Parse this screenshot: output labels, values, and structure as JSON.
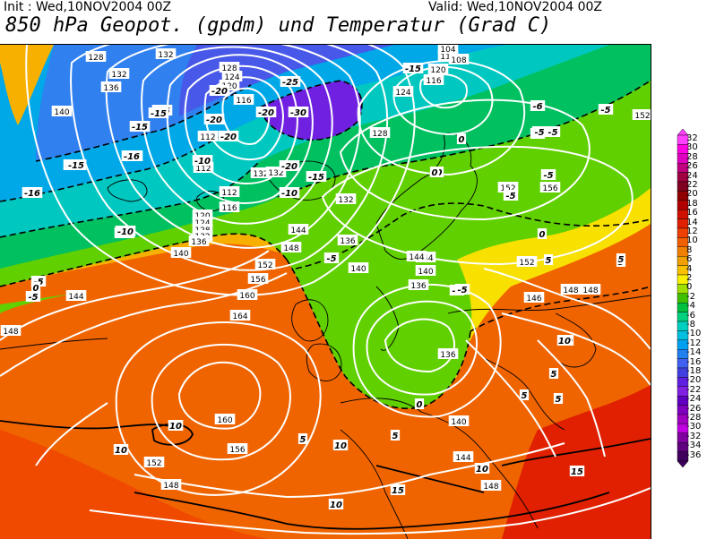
{
  "header": {
    "init_text": "Init : Wed,10NOV2004 00Z",
    "valid_text": "Valid: Wed,10NOV2004 00Z",
    "title": "850 hPa Geopot. (gpdm) und Temperatur (Grad C)"
  },
  "colorbar": {
    "labels": [
      "32",
      "30",
      "28",
      "26",
      "24",
      "22",
      "20",
      "18",
      "16",
      "14",
      "12",
      "10",
      "8",
      "6",
      "4",
      "2",
      "0",
      "-2",
      "-4",
      "-6",
      "-8",
      "-10",
      "-12",
      "-14",
      "-16",
      "-18",
      "-20",
      "-22",
      "-24",
      "-26",
      "-28",
      "-30",
      "-32",
      "-34",
      "-36"
    ],
    "colors": [
      "#ff40ff",
      "#ff00e0",
      "#e000c0",
      "#c00080",
      "#a00040",
      "#800020",
      "#900000",
      "#b00000",
      "#d01000",
      "#e02000",
      "#f04000",
      "#f06000",
      "#f08000",
      "#f0a000",
      "#f8c000",
      "#f8f000",
      "#a0e000",
      "#40c000",
      "#00c040",
      "#00d080",
      "#00d0c0",
      "#00c0e0",
      "#00a0f0",
      "#2080f0",
      "#4060f0",
      "#4040e0",
      "#6020e0",
      "#8020e0",
      "#6000c0",
      "#8000c0",
      "#a000c0",
      "#c000e0",
      "#8000a0",
      "#600080",
      "#400060"
    ]
  },
  "geopotential_labels": [
    {
      "text": "128"
    },
    {
      "text": "132"
    },
    {
      "text": "136"
    },
    {
      "text": "140"
    },
    {
      "text": "132"
    },
    {
      "text": "128"
    },
    {
      "text": "124"
    },
    {
      "text": "120"
    },
    {
      "text": "116"
    },
    {
      "text": "112"
    },
    {
      "text": "112"
    },
    {
      "text": "112"
    },
    {
      "text": "116"
    },
    {
      "text": "120"
    },
    {
      "text": "124"
    },
    {
      "text": "128"
    },
    {
      "text": "132"
    },
    {
      "text": "136"
    },
    {
      "text": "140"
    },
    {
      "text": "144"
    },
    {
      "text": "148"
    },
    {
      "text": "152"
    },
    {
      "text": "156"
    },
    {
      "text": "160"
    },
    {
      "text": "164"
    },
    {
      "text": "160"
    },
    {
      "text": "156"
    },
    {
      "text": "152"
    },
    {
      "text": "148"
    },
    {
      "text": "148"
    },
    {
      "text": "144"
    },
    {
      "text": "144"
    },
    {
      "text": "140"
    },
    {
      "text": "136"
    },
    {
      "text": "132"
    },
    {
      "text": "128"
    },
    {
      "text": "124"
    },
    {
      "text": "120"
    },
    {
      "text": "116"
    },
    {
      "text": "112"
    },
    {
      "text": "108"
    },
    {
      "text": "104"
    },
    {
      "text": "140"
    },
    {
      "text": "136"
    },
    {
      "text": "136"
    },
    {
      "text": "140"
    },
    {
      "text": "144"
    },
    {
      "text": "148"
    },
    {
      "text": "152"
    },
    {
      "text": "152"
    },
    {
      "text": "156"
    },
    {
      "text": "148"
    },
    {
      "text": "146"
    },
    {
      "text": "152"
    },
    {
      "text": "132"
    },
    {
      "text": "132"
    },
    {
      "text": "144"
    },
    {
      "text": "148"
    }
  ],
  "temperature_labels": [
    {
      "text": "-15"
    },
    {
      "text": "-15"
    },
    {
      "text": "-16"
    },
    {
      "text": "-15"
    },
    {
      "text": "-16"
    },
    {
      "text": "-15"
    },
    {
      "text": "-10"
    },
    {
      "text": "-10"
    },
    {
      "text": "-16"
    },
    {
      "text": "-5"
    },
    {
      "text": "0"
    },
    {
      "text": "-5"
    },
    {
      "text": "-25"
    },
    {
      "text": "-20"
    },
    {
      "text": "-30"
    },
    {
      "text": "-20"
    },
    {
      "text": "-20"
    },
    {
      "text": "-20"
    },
    {
      "text": "-15"
    },
    {
      "text": "-15"
    },
    {
      "text": "-10"
    },
    {
      "text": "-15"
    },
    {
      "text": "-5"
    },
    {
      "text": "-20"
    },
    {
      "text": "-15"
    },
    {
      "text": "-10"
    },
    {
      "text": "-5"
    },
    {
      "text": "-6"
    },
    {
      "text": "-5"
    },
    {
      "text": "-5"
    },
    {
      "text": "-5"
    },
    {
      "text": "0"
    },
    {
      "text": "0"
    },
    {
      "text": "-5"
    },
    {
      "text": "0"
    },
    {
      "text": "5"
    },
    {
      "text": "5"
    },
    {
      "text": "10"
    },
    {
      "text": "10"
    },
    {
      "text": "10"
    },
    {
      "text": "5"
    },
    {
      "text": "10"
    },
    {
      "text": "15"
    },
    {
      "text": "15"
    },
    {
      "text": "10"
    },
    {
      "text": "10"
    },
    {
      "text": "5"
    },
    {
      "text": "5"
    },
    {
      "text": "5"
    },
    {
      "text": "10"
    },
    {
      "text": "0"
    },
    {
      "text": "5"
    },
    {
      "text": "-5"
    },
    {
      "text": "0"
    },
    {
      "text": "-5"
    },
    {
      "text": "-5"
    },
    {
      "text": "10"
    },
    {
      "text": "5"
    }
  ]
}
